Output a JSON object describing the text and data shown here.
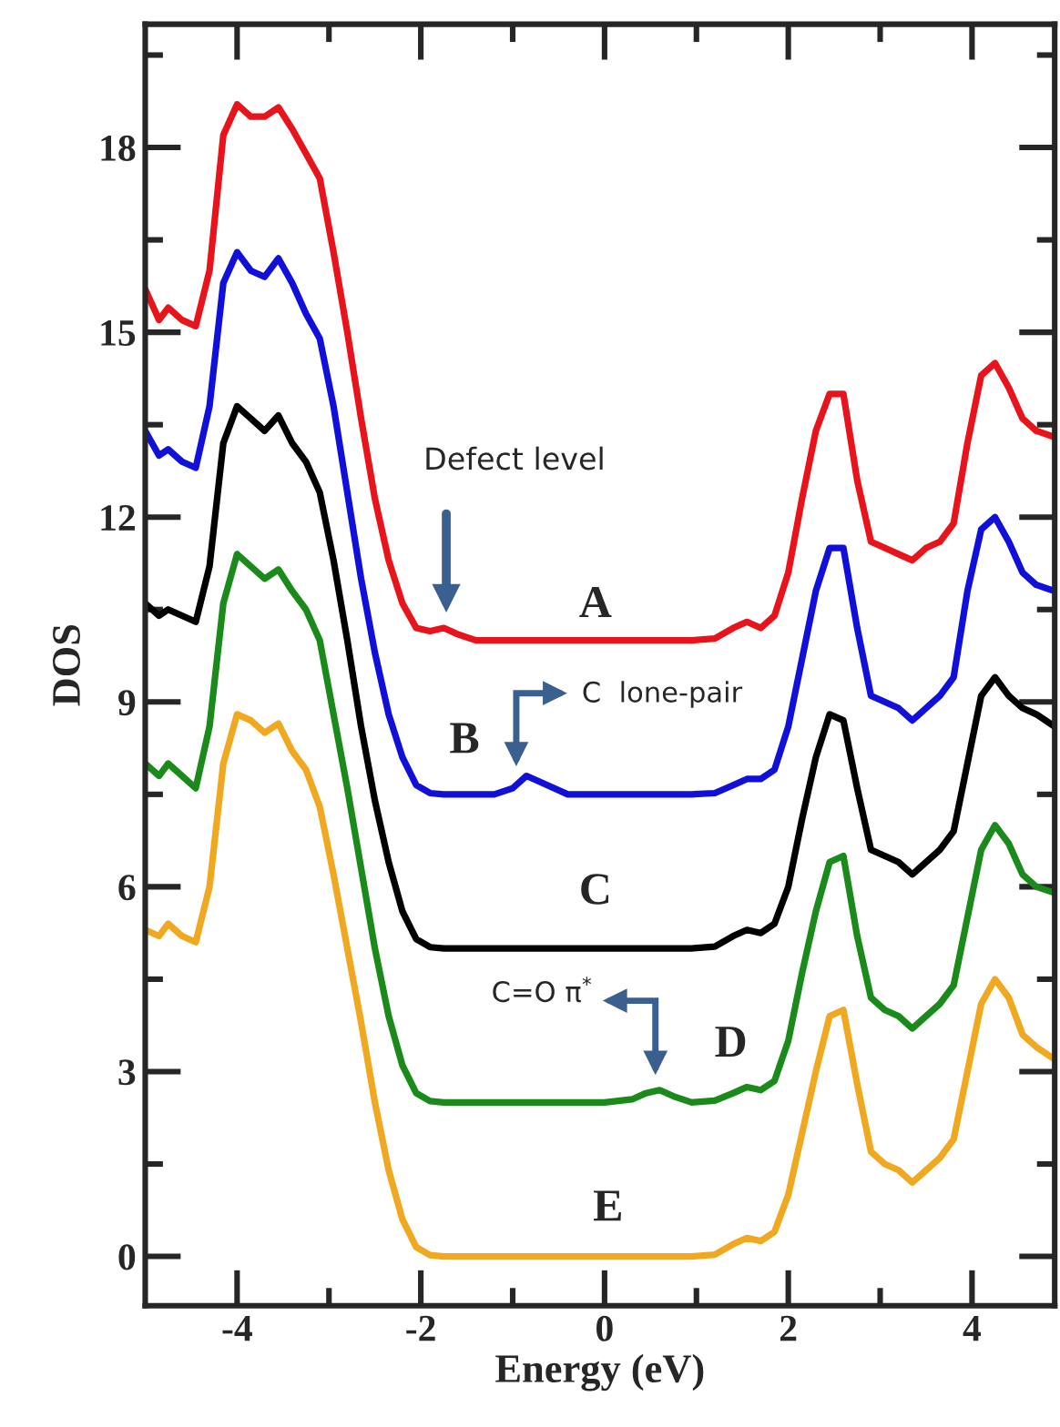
{
  "chart_data": {
    "type": "line",
    "xlabel": "Energy (eV)",
    "ylabel": "DOS",
    "x": [
      -5,
      -4.85,
      -4.75,
      -4.6,
      -4.45,
      -4.3,
      -4.15,
      -4.0,
      -3.85,
      -3.7,
      -3.55,
      -3.4,
      -3.25,
      -3.1,
      -2.95,
      -2.8,
      -2.65,
      -2.5,
      -2.35,
      -2.2,
      -2.05,
      -1.9,
      -1.75,
      -1.6,
      -1.4,
      -1.2,
      -1.0,
      -0.85,
      -0.7,
      -0.4,
      0,
      0.3,
      0.45,
      0.6,
      0.75,
      0.95,
      1.2,
      1.4,
      1.55,
      1.7,
      1.85,
      2.0,
      2.15,
      2.3,
      2.45,
      2.6,
      2.75,
      2.9,
      3.05,
      3.2,
      3.35,
      3.5,
      3.65,
      3.8,
      3.95,
      4.1,
      4.25,
      4.4,
      4.55,
      4.7,
      4.9
    ],
    "series": [
      {
        "color": "#e8141c",
        "values": [
          15.7,
          15.2,
          15.4,
          15.2,
          15.1,
          16.0,
          18.2,
          18.7,
          18.5,
          18.5,
          18.65,
          18.3,
          17.9,
          17.5,
          16.3,
          15.0,
          13.6,
          12.3,
          11.3,
          10.6,
          10.2,
          10.15,
          10.2,
          10.1,
          10.0,
          10.0,
          10.0,
          10.0,
          10.0,
          10.0,
          10.0,
          10.0,
          10.0,
          10.0,
          10.0,
          10.0,
          10.03,
          10.2,
          10.3,
          10.2,
          10.4,
          11.1,
          12.3,
          13.4,
          14.0,
          14.0,
          12.6,
          11.6,
          11.5,
          11.4,
          11.3,
          11.5,
          11.6,
          11.9,
          13.2,
          14.3,
          14.5,
          14.1,
          13.6,
          13.4,
          13.3
        ]
      },
      {
        "color": "#1010d8",
        "values": [
          13.4,
          13.0,
          13.1,
          12.9,
          12.8,
          13.8,
          15.8,
          16.3,
          16.0,
          15.9,
          16.2,
          15.8,
          15.3,
          14.9,
          13.8,
          12.4,
          11.0,
          9.8,
          8.8,
          8.1,
          7.65,
          7.52,
          7.5,
          7.5,
          7.5,
          7.5,
          7.6,
          7.8,
          7.7,
          7.5,
          7.5,
          7.5,
          7.5,
          7.5,
          7.5,
          7.5,
          7.52,
          7.65,
          7.75,
          7.75,
          7.9,
          8.6,
          9.7,
          10.8,
          11.5,
          11.5,
          10.2,
          9.1,
          9.0,
          8.9,
          8.7,
          8.9,
          9.1,
          9.4,
          10.8,
          11.8,
          12.0,
          11.6,
          11.1,
          10.9,
          10.8
        ]
      },
      {
        "color": "#000000",
        "values": [
          10.6,
          10.4,
          10.5,
          10.4,
          10.3,
          11.2,
          13.2,
          13.8,
          13.6,
          13.4,
          13.65,
          13.2,
          12.9,
          12.4,
          11.3,
          10.0,
          8.6,
          7.4,
          6.4,
          5.6,
          5.15,
          5.02,
          5,
          5,
          5,
          5,
          5,
          5,
          5,
          5,
          5,
          5,
          5,
          5,
          5,
          5,
          5.03,
          5.2,
          5.3,
          5.25,
          5.4,
          6.0,
          7.1,
          8.1,
          8.8,
          8.7,
          7.6,
          6.6,
          6.5,
          6.4,
          6.2,
          6.4,
          6.6,
          6.9,
          8.0,
          9.1,
          9.4,
          9.1,
          8.9,
          8.8,
          8.6
        ]
      },
      {
        "color": "#1a8a1a",
        "values": [
          8.0,
          7.8,
          8.0,
          7.8,
          7.6,
          8.6,
          10.6,
          11.4,
          11.2,
          11.0,
          11.15,
          10.8,
          10.5,
          10.0,
          8.8,
          7.6,
          6.3,
          5.0,
          3.9,
          3.1,
          2.65,
          2.52,
          2.5,
          2.5,
          2.5,
          2.5,
          2.5,
          2.5,
          2.5,
          2.5,
          2.5,
          2.55,
          2.65,
          2.7,
          2.6,
          2.5,
          2.53,
          2.65,
          2.75,
          2.7,
          2.85,
          3.5,
          4.6,
          5.6,
          6.4,
          6.5,
          5.2,
          4.2,
          4.0,
          3.9,
          3.7,
          3.9,
          4.1,
          4.4,
          5.5,
          6.6,
          7.0,
          6.7,
          6.2,
          6.0,
          5.9
        ]
      },
      {
        "color": "#f0a820",
        "values": [
          5.3,
          5.2,
          5.4,
          5.2,
          5.1,
          6.0,
          8.0,
          8.8,
          8.7,
          8.5,
          8.65,
          8.2,
          7.9,
          7.3,
          6.2,
          5.0,
          3.8,
          2.5,
          1.4,
          0.6,
          0.15,
          0.02,
          0,
          0,
          0,
          0,
          0,
          0,
          0,
          0,
          0,
          0,
          0,
          0,
          0,
          0,
          0.03,
          0.2,
          0.3,
          0.25,
          0.4,
          1.0,
          2.0,
          3.0,
          3.9,
          4.0,
          2.8,
          1.7,
          1.5,
          1.4,
          1.2,
          1.4,
          1.6,
          1.9,
          3.0,
          4.1,
          4.5,
          4.2,
          3.6,
          3.4,
          3.2
        ]
      }
    ],
    "xlim": [
      -5,
      4.9
    ],
    "ylim": [
      -0.8,
      20
    ],
    "xticks": [
      -4,
      -2,
      0,
      2,
      4,
      {
        "value": -3,
        "label": null
      },
      {
        "value": -1,
        "label": null
      },
      {
        "value": 1,
        "label": null
      },
      {
        "value": 3,
        "label": null
      }
    ],
    "yticks": [
      0,
      3,
      6,
      9,
      12,
      15,
      18,
      {
        "value": 1.5,
        "label": null
      },
      {
        "value": 4.5,
        "label": null
      },
      {
        "value": 7.5,
        "label": null
      },
      {
        "value": 10.5,
        "label": null
      },
      {
        "value": 13.5,
        "label": null
      },
      {
        "value": 16.5,
        "label": null
      },
      {
        "value": 19.5,
        "label": null
      }
    ],
    "grid": false,
    "legend": false,
    "line_style": "solid",
    "annotations": [
      "A",
      "B",
      "C",
      "D",
      "E",
      "Defect level",
      "C  lone-pair",
      "C=O π$^{*}$"
    ]
  }
}
